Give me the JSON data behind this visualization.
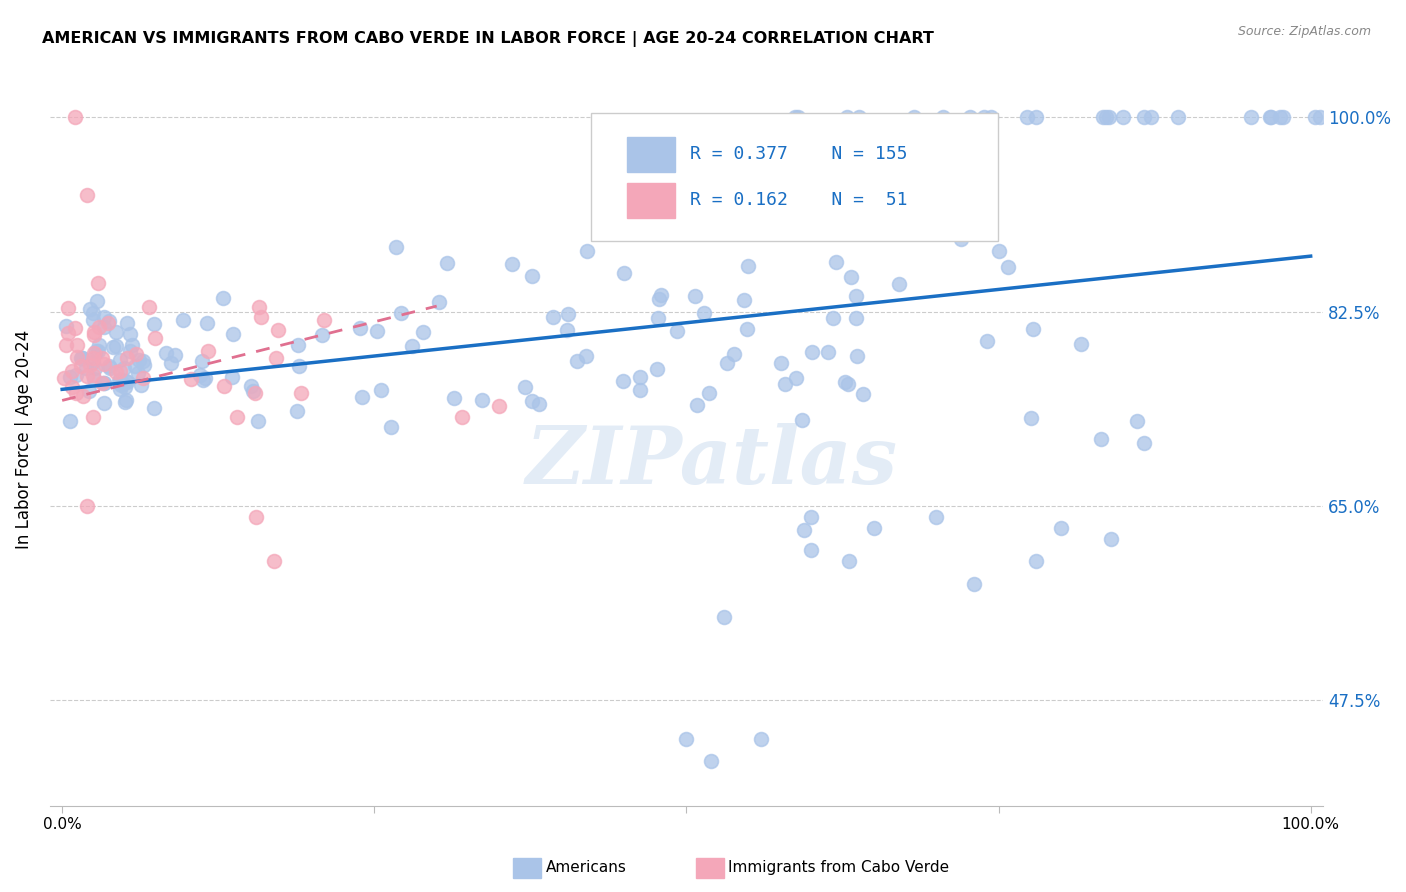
{
  "title": "AMERICAN VS IMMIGRANTS FROM CABO VERDE IN LABOR FORCE | AGE 20-24 CORRELATION CHART",
  "source": "Source: ZipAtlas.com",
  "ylabel": "In Labor Force | Age 20-24",
  "watermark": "ZIPatlas",
  "legend_R_american": "0.377",
  "legend_N_american": "155",
  "legend_R_cabo": "0.162",
  "legend_N_cabo": "51",
  "american_color": "#aac4e8",
  "cabo_color": "#f4a7b9",
  "trendline_american_color": "#1a6fc4",
  "trendline_cabo_color": "#e07090",
  "ytick_color": "#1a6fc4",
  "yticks": [
    0.475,
    0.65,
    0.825,
    1.0
  ],
  "ytick_labels": [
    "47.5%",
    "65.0%",
    "82.5%",
    "100.0%"
  ],
  "trendline_am_x0": 0.0,
  "trendline_am_y0": 0.755,
  "trendline_am_x1": 1.0,
  "trendline_am_y1": 0.875,
  "trendline_cv_x0": 0.0,
  "trendline_cv_y0": 0.745,
  "trendline_cv_x1": 0.3,
  "trendline_cv_y1": 0.83,
  "xlim": [
    -0.01,
    1.01
  ],
  "ylim": [
    0.38,
    1.04
  ],
  "scatter_size": 100
}
